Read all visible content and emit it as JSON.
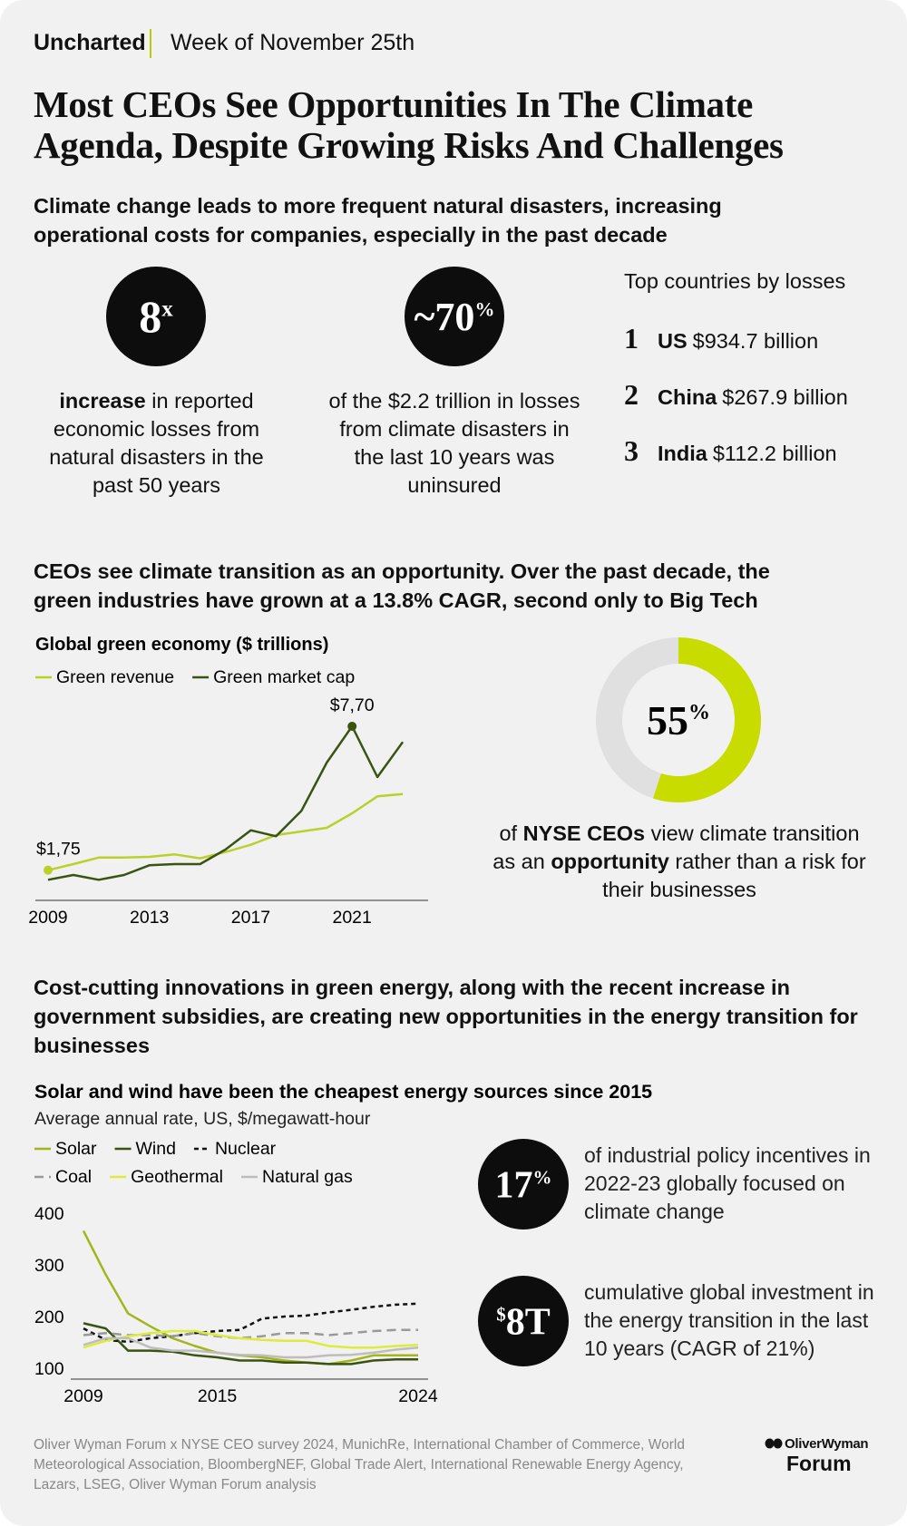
{
  "header": {
    "brand": "Uncharted",
    "week": "Week of November 25th"
  },
  "title": "Most CEOs See Opportunities In The Climate Agenda, Despite Growing Risks And Challenges",
  "section1": {
    "heading": "Climate change leads to more frequent natural disasters, increasing operational costs for companies, especially in the past decade",
    "stats": [
      {
        "value": "8",
        "sup": "x",
        "text": [
          {
            "text": "increase",
            "bold": true
          },
          {
            "text": " in reported economic losses from natural disasters in the past 50 years",
            "bold": false
          }
        ]
      },
      {
        "value": "~70",
        "sup": "%",
        "text": [
          {
            "text": "of the $2.2 trillion in losses from climate disasters in the last 10 years was uninsured",
            "bold": false
          }
        ]
      }
    ],
    "top_countries": {
      "title": "Top countries by losses",
      "items": [
        {
          "rank": 1,
          "country": "US",
          "amount": "$934.7 billion"
        },
        {
          "rank": 2,
          "country": "China",
          "amount": "$267.9 billion"
        },
        {
          "rank": 3,
          "country": "India",
          "amount": "$112.2 billion"
        }
      ]
    }
  },
  "section2": {
    "heading": "CEOs see climate transition as an opportunity. Over the past decade, the green industries have grown at a 13.8% CAGR, second only to Big Tech"
  },
  "section3": {
    "heading": "Cost-cutting innovations in green energy, along with the recent increase in government subsidies, are creating new opportunities in the energy transition for businesses",
    "stats": [
      {
        "value": "17",
        "sup": "%",
        "text": "of industrial policy incentives in 2022-23 globally focused on climate change"
      },
      {
        "pre": "$",
        "value": "8T",
        "text": "cumulative global investment in the energy transition in the last 10 years (CAGR of 21%)"
      }
    ]
  },
  "chart_data": [
    {
      "type": "line",
      "title": "Global green economy ($ trillions)",
      "x": [
        2009,
        2010,
        2011,
        2012,
        2013,
        2014,
        2015,
        2016,
        2017,
        2018,
        2019,
        2020,
        2021,
        2022,
        2023
      ],
      "xlim": [
        2008.5,
        2024
      ],
      "xticks": [
        2009,
        2013,
        2017,
        2021
      ],
      "ylim": [
        0.5,
        8
      ],
      "series": [
        {
          "name": "Green revenue",
          "color": "#b9d12a",
          "values": [
            1.75,
            2.0,
            2.27,
            2.27,
            2.3,
            2.4,
            2.24,
            2.5,
            2.8,
            3.2,
            3.35,
            3.5,
            4.1,
            4.8,
            4.9
          ],
          "value_labels": [
            "$1,75",
            null,
            null,
            null,
            null,
            null,
            null,
            null,
            null,
            null,
            null,
            null,
            null,
            null,
            null
          ]
        },
        {
          "name": "Green market cap",
          "color": "#3a5212",
          "values": [
            1.35,
            1.55,
            1.35,
            1.55,
            1.95,
            2.0,
            2.0,
            2.6,
            3.4,
            3.15,
            4.2,
            6.2,
            7.7,
            5.6,
            7.05
          ],
          "value_labels": [
            null,
            null,
            null,
            null,
            null,
            null,
            null,
            null,
            null,
            null,
            null,
            null,
            "$7,70",
            null,
            null
          ]
        }
      ]
    },
    {
      "type": "donut",
      "values": [
        55,
        45
      ],
      "value_labels": [
        "55%",
        null
      ],
      "colors": [
        "#c8dc00",
        "#e0e0e0"
      ],
      "caption": [
        {
          "text": "of ",
          "bold": false
        },
        {
          "text": "NYSE CEOs",
          "bold": true
        },
        {
          "text": " view climate transition as an ",
          "bold": false
        },
        {
          "text": "opportunity",
          "bold": true
        },
        {
          "text": " rather than a risk for their businesses",
          "bold": false
        }
      ]
    },
    {
      "type": "line",
      "title": "Solar and wind have been the cheapest energy sources since 2015",
      "subtitle": "Average annual rate, US, $/megawatt-hour",
      "x": [
        2009,
        2010,
        2011,
        2012,
        2013,
        2014,
        2015,
        2016,
        2017,
        2018,
        2019,
        2020,
        2021,
        2022,
        2023,
        2024
      ],
      "xlim": [
        2009,
        2024
      ],
      "xticks": [
        2009,
        2015,
        2024
      ],
      "ylim": [
        100,
        400
      ],
      "yticks": [
        400,
        300,
        200,
        100
      ],
      "series": [
        {
          "name": "Solar",
          "color": "#a3b51c",
          "dash": "solid",
          "values": [
            366,
            281,
            206,
            181,
            158,
            143,
            130,
            125,
            121,
            115,
            111,
            108,
            115,
            125,
            125,
            125
          ]
        },
        {
          "name": "Wind",
          "color": "#3a5212",
          "dash": "solid",
          "values": [
            187,
            177,
            134,
            134,
            132,
            125,
            121,
            115,
            115,
            111,
            111,
            108,
            108,
            115,
            117,
            117
          ]
        },
        {
          "name": "Nuclear",
          "color": "#111111",
          "dash": "short",
          "values": [
            177,
            155,
            151,
            158,
            162,
            168,
            172,
            174,
            196,
            200,
            202,
            208,
            213,
            219,
            223,
            225
          ]
        },
        {
          "name": "Coal",
          "color": "#999999",
          "dash": "long",
          "values": [
            164,
            168,
            164,
            164,
            162,
            168,
            162,
            158,
            162,
            168,
            168,
            164,
            168,
            172,
            174,
            174
          ]
        },
        {
          "name": "Geothermal",
          "color": "#dcec3c",
          "dash": "solid",
          "values": [
            140,
            153,
            162,
            168,
            172,
            172,
            164,
            158,
            155,
            153,
            153,
            143,
            140,
            140,
            143,
            145
          ]
        },
        {
          "name": "Natural gas",
          "color": "#bdbdbd",
          "dash": "solid",
          "values": [
            145,
            158,
            158,
            140,
            134,
            134,
            130,
            126,
            125,
            121,
            121,
            125,
            126,
            130,
            136,
            140
          ]
        }
      ]
    }
  ],
  "footer": {
    "source": "Oliver Wyman Forum x NYSE CEO survey 2024, MunichRe, International Chamber of Commerce, World Meteorological Association, BloombergNEF, Global Trade Alert, International Renewable Energy Agency, Lazars, LSEG,  Oliver Wyman Forum analysis",
    "logo": [
      "OliverWyman",
      "Forum"
    ]
  }
}
